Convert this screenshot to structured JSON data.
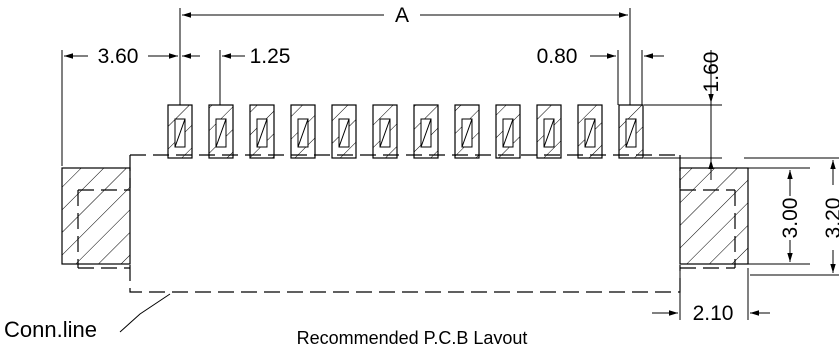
{
  "dimensions": {
    "overall_width": "A",
    "edge_offset": "3.60",
    "pitch": "1.25",
    "pad_width": "0.80",
    "pad_length": "1.60",
    "side_pad_inner": "3.00",
    "side_pad_outer": "3.20",
    "side_pad_width": "2.10"
  },
  "labels": {
    "connector_line": "Conn.line",
    "caption": "Recommended P.C.B Layout"
  },
  "layout": {
    "signal_pad_count": 12
  }
}
